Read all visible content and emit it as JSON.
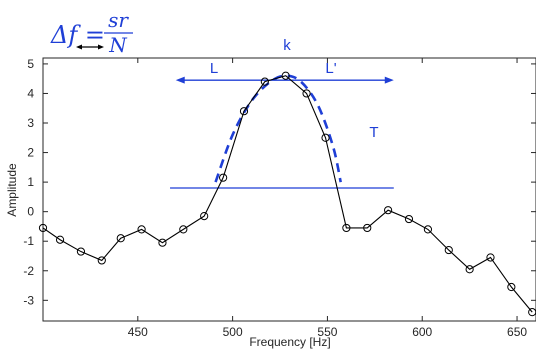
{
  "chart_data": {
    "type": "line",
    "xlabel": "Frequency [Hz]",
    "ylabel": "Amplitude",
    "xlim": [
      400,
      660
    ],
    "ylim": [
      -3.7,
      5.2
    ],
    "xticks": [
      450,
      500,
      550,
      600,
      650
    ],
    "yticks": [
      -3,
      -2,
      -1,
      0,
      1,
      2,
      3,
      4,
      5
    ],
    "x_tick_labels": [
      "450",
      "500",
      "550",
      "600",
      "650"
    ],
    "y_tick_labels": [
      "-3",
      "-2",
      "-1",
      "0",
      "1",
      "2",
      "3",
      "4",
      "5"
    ],
    "grid": false,
    "series": [
      {
        "x": [
          400,
          409,
          420,
          431,
          441,
          452,
          463,
          474,
          485,
          495,
          506,
          517,
          528,
          539,
          549,
          560,
          571,
          582,
          593,
          603,
          614,
          625,
          636,
          647,
          658
        ],
        "values": [
          -0.55,
          -0.95,
          -1.35,
          -1.65,
          -0.9,
          -0.6,
          -1.05,
          -0.6,
          -0.15,
          1.15,
          3.4,
          4.4,
          4.6,
          4.0,
          2.5,
          -0.55,
          -0.55,
          0.05,
          -0.25,
          -0.6,
          -1.3,
          -1.95,
          -1.55,
          -2.55,
          -3.4
        ],
        "color": "#000000",
        "marker": "circle"
      }
    ],
    "annotations": {
      "formula": {
        "lhs": "Δf =",
        "numerator": "sr",
        "denominator": "N"
      },
      "k_label": "k",
      "L_label": "L",
      "L_prime_label": "L'",
      "T_label": "T",
      "arrow_y": 4.45,
      "arrow_x_range": [
        470,
        585
      ],
      "threshold_y": 0.8,
      "threshold_x_range": [
        467,
        585
      ],
      "dashed_envelope": {
        "x": [
          491,
          500,
          510,
          520,
          528,
          536,
          545,
          553,
          557
        ],
        "y": [
          1.0,
          2.6,
          3.75,
          4.4,
          4.6,
          4.4,
          3.6,
          2.2,
          1.0
        ]
      },
      "accent_color": "#1f3fd6"
    }
  }
}
